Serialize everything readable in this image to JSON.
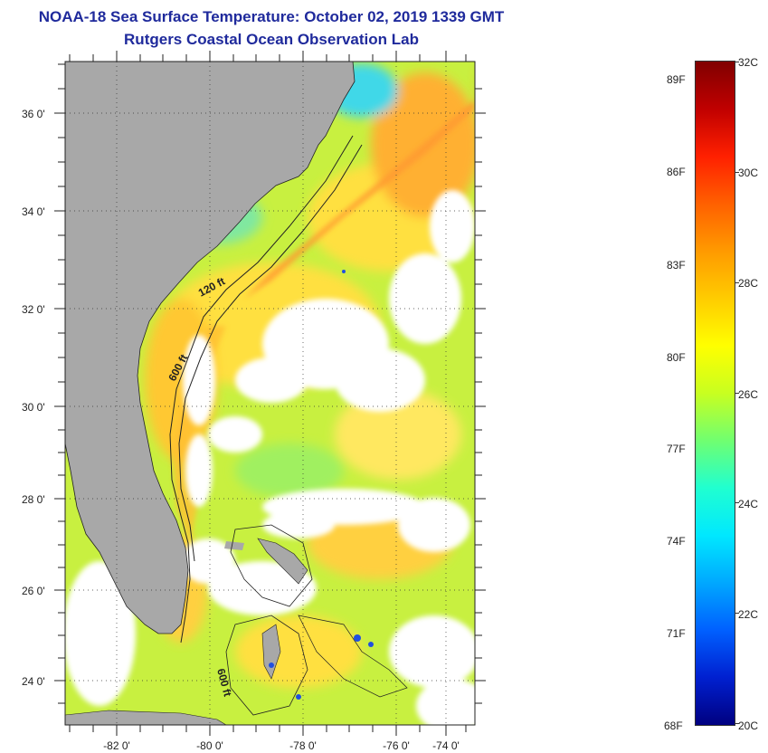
{
  "title": {
    "line1": "NOAA-18 Sea Surface Temperature:  October 02, 2019 1339 GMT",
    "line2": "Rutgers Coastal Ocean Observation Lab"
  },
  "map": {
    "lat_labels": [
      "36 0'",
      "34 0'",
      "32 0'",
      "30 0'",
      "28 0'",
      "26 0'",
      "24 0'"
    ],
    "lon_labels": [
      "-82 0'",
      "-80 0'",
      "-78 0'",
      "-76 0'",
      "-74 0'"
    ],
    "contours": [
      {
        "label": "120 ft"
      },
      {
        "label": "600 ft"
      },
      {
        "label": "600 ft"
      }
    ]
  },
  "colorbar": {
    "fahrenheit_labels": [
      "89F",
      "86F",
      "83F",
      "80F",
      "77F",
      "74F",
      "71F",
      "68F"
    ],
    "celsius_labels": [
      "32C",
      "30C",
      "28C",
      "26C",
      "24C",
      "22C",
      "20C"
    ],
    "stops": [
      "#800000",
      "#c00000",
      "#ff2000",
      "#ff6000",
      "#ff9a00",
      "#ffcc00",
      "#ffff00",
      "#c8ff20",
      "#70ff70",
      "#20ffd0",
      "#00e8ff",
      "#00a8ff",
      "#0060ff",
      "#0020d0",
      "#000080"
    ]
  },
  "colors": {
    "land": "#a8a8a8",
    "cloud": "#ffffff",
    "title": "#1f2a9c",
    "sst_warm": "#ffcc33",
    "sst_mid": "#c8f040",
    "sst_cool": "#5fd9b0",
    "gulfstream": "#ff9a30"
  }
}
